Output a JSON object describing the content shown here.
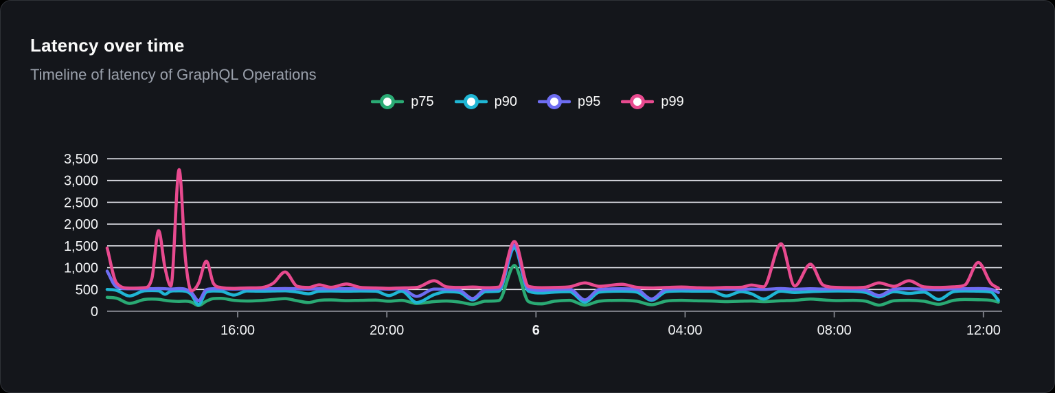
{
  "panel": {
    "title": "Latency over time",
    "subtitle": "Timeline of latency of GraphQL Operations"
  },
  "colors": {
    "background": "#14161b",
    "panel_border": "#2f3238",
    "grid": "#e2e3ea",
    "axis": "#787a82",
    "text_primary": "#fafafa",
    "text_muted": "#9aa0ab"
  },
  "chart_data": {
    "type": "line",
    "title": "Latency over time",
    "subtitle": "Timeline of latency of GraphQL Operations",
    "xlabel": "",
    "ylabel": "",
    "grid": "horizontal",
    "legend_position": "top-center",
    "xlim": [
      0,
      24
    ],
    "ylim": [
      0,
      3500
    ],
    "x_unit": "hours from chart start (~12:30 day 5 to ~12:30 day 6)",
    "x": [
      0,
      0.25,
      0.6,
      1,
      1.2,
      1.38,
      1.55,
      1.71,
      1.93,
      2.1,
      2.26,
      2.45,
      2.66,
      2.85,
      3.05,
      3.4,
      3.75,
      4.1,
      4.45,
      4.77,
      5.1,
      5.4,
      5.69,
      6,
      6.42,
      6.8,
      7.2,
      7.56,
      7.9,
      8.3,
      8.77,
      9.1,
      9.45,
      9.8,
      10.15,
      10.5,
      10.92,
      11.3,
      11.65,
      12,
      12.4,
      12.81,
      13.2,
      13.8,
      14.2,
      14.6,
      15,
      15.4,
      15.8,
      16.2,
      16.6,
      17,
      17.28,
      17.6,
      18.07,
      18.44,
      18.86,
      19.2,
      19.6,
      20,
      20.35,
      20.7,
      21.1,
      21.5,
      21.9,
      22.3,
      22.7,
      23,
      23.36,
      23.7,
      23.9
    ],
    "series": [
      {
        "name": "p75",
        "color": "#2aaa74",
        "values": [
          320,
          300,
          180,
          270,
          280,
          275,
          250,
          235,
          225,
          230,
          210,
          130,
          230,
          290,
          295,
          250,
          235,
          245,
          270,
          290,
          240,
          200,
          250,
          260,
          245,
          250,
          255,
          230,
          250,
          180,
          220,
          235,
          210,
          160,
          230,
          245,
          1050,
          220,
          170,
          230,
          250,
          140,
          230,
          250,
          230,
          150,
          235,
          250,
          240,
          235,
          220,
          230,
          235,
          220,
          240,
          250,
          280,
          260,
          245,
          250,
          230,
          140,
          240,
          250,
          230,
          160,
          250,
          270,
          265,
          250,
          210
        ]
      },
      {
        "name": "p90",
        "color": "#1fb6d4",
        "values": [
          500,
          480,
          350,
          470,
          475,
          470,
          390,
          460,
          470,
          460,
          380,
          150,
          440,
          465,
          460,
          370,
          465,
          460,
          465,
          470,
          440,
          400,
          460,
          465,
          460,
          465,
          460,
          360,
          460,
          200,
          380,
          450,
          430,
          260,
          450,
          460,
          1450,
          460,
          420,
          440,
          450,
          210,
          440,
          460,
          440,
          250,
          450,
          465,
          460,
          460,
          350,
          450,
          400,
          280,
          460,
          430,
          450,
          460,
          465,
          460,
          430,
          330,
          450,
          410,
          440,
          270,
          450,
          465,
          460,
          440,
          250
        ]
      },
      {
        "name": "p95",
        "color": "#6e6df2",
        "values": [
          920,
          560,
          515,
          515,
          515,
          520,
          515,
          510,
          520,
          505,
          430,
          240,
          495,
          515,
          515,
          510,
          515,
          515,
          515,
          520,
          515,
          510,
          515,
          515,
          515,
          515,
          515,
          510,
          515,
          340,
          510,
          505,
          480,
          290,
          500,
          515,
          1520,
          515,
          480,
          500,
          510,
          260,
          500,
          515,
          500,
          280,
          505,
          515,
          515,
          515,
          510,
          505,
          510,
          500,
          520,
          505,
          515,
          510,
          515,
          510,
          480,
          360,
          505,
          515,
          505,
          490,
          515,
          515,
          520,
          505,
          430
        ]
      },
      {
        "name": "p99",
        "color": "#e84a8f",
        "values": [
          1450,
          650,
          530,
          540,
          750,
          1850,
          1000,
          580,
          3250,
          1200,
          470,
          640,
          1150,
          640,
          545,
          525,
          535,
          540,
          640,
          900,
          570,
          545,
          605,
          550,
          625,
          545,
          535,
          525,
          535,
          545,
          700,
          560,
          545,
          555,
          540,
          555,
          1600,
          570,
          540,
          545,
          560,
          650,
          570,
          620,
          550,
          535,
          545,
          555,
          540,
          535,
          545,
          550,
          600,
          560,
          1550,
          580,
          1080,
          600,
          545,
          540,
          555,
          650,
          570,
          700,
          560,
          545,
          560,
          600,
          1120,
          640,
          530
        ]
      }
    ],
    "y_ticks": [
      {
        "v": 0,
        "label": "0"
      },
      {
        "v": 500,
        "label": "500"
      },
      {
        "v": 1000,
        "label": "1,000"
      },
      {
        "v": 1500,
        "label": "1,500"
      },
      {
        "v": 2000,
        "label": "2,000"
      },
      {
        "v": 2500,
        "label": "2,500"
      },
      {
        "v": 3000,
        "label": "3,000"
      },
      {
        "v": 3500,
        "label": "3,500"
      }
    ],
    "x_ticks": [
      {
        "t": 3.5,
        "label": "16:00",
        "bold": false
      },
      {
        "t": 7.5,
        "label": "20:00",
        "bold": false
      },
      {
        "t": 11.5,
        "label": "6",
        "bold": true
      },
      {
        "t": 15.5,
        "label": "04:00",
        "bold": false
      },
      {
        "t": 19.5,
        "label": "08:00",
        "bold": false
      },
      {
        "t": 23.5,
        "label": "12:00",
        "bold": false
      }
    ]
  }
}
